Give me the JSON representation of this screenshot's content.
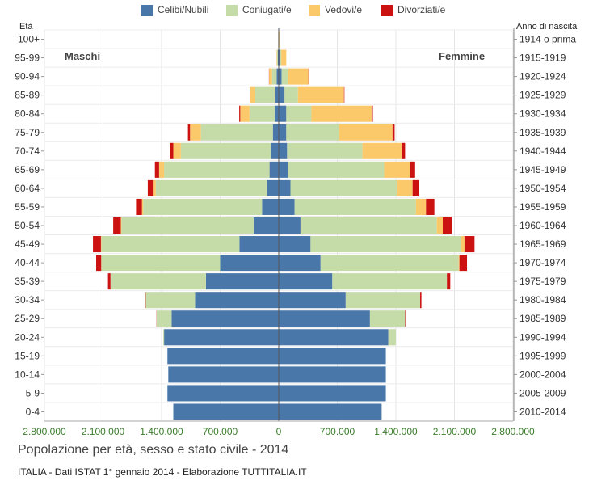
{
  "legend": [
    {
      "label": "Celibi/Nubili",
      "color": "#4a77aa"
    },
    {
      "label": "Coniugati/e",
      "color": "#c5dba8"
    },
    {
      "label": "Vedovi/e",
      "color": "#fbc86a"
    },
    {
      "label": "Divorziati/e",
      "color": "#cc1111"
    }
  ],
  "header": {
    "left": "Età",
    "right": "Anno di nascita"
  },
  "sides": {
    "left": "Maschi",
    "right": "Femmine"
  },
  "caption": {
    "title": "Popolazione per età, sesso e stato civile - 2014",
    "source": "ITALIA - Dati ISTAT 1° gennaio 2014 - Elaborazione TUTTITALIA.IT"
  },
  "chart_data": {
    "type": "bar",
    "orientation": "horizontal population pyramid (stacked)",
    "title": "Popolazione per età, sesso e stato civile - 2014",
    "categories": [
      "100+",
      "95-99",
      "90-94",
      "85-89",
      "80-84",
      "75-79",
      "70-74",
      "65-69",
      "60-64",
      "55-59",
      "50-54",
      "45-49",
      "40-44",
      "35-39",
      "30-34",
      "25-29",
      "20-24",
      "15-19",
      "10-14",
      "5-9",
      "0-4"
    ],
    "birth_years": [
      "1914 o prima",
      "1915-1919",
      "1920-1924",
      "1925-1929",
      "1930-1934",
      "1935-1939",
      "1940-1944",
      "1945-1949",
      "1950-1954",
      "1955-1959",
      "1960-1964",
      "1965-1969",
      "1970-1974",
      "1975-1979",
      "1980-1984",
      "1985-1989",
      "1990-1994",
      "1995-1999",
      "2000-2004",
      "2005-2009",
      "2010-2014"
    ],
    "x_ticks": [
      "2.800.000",
      "2.100.000",
      "1.400.000",
      "700.000",
      "0",
      "700.000",
      "1.400.000",
      "2.100.000",
      "2.800.000"
    ],
    "xlim": [
      -2800000,
      2800000
    ],
    "grid": true,
    "legend_position": "top",
    "male": {
      "Celibi/Nubili": [
        5000,
        10000,
        25000,
        40000,
        50000,
        70000,
        90000,
        110000,
        140000,
        200000,
        300000,
        470000,
        700000,
        870000,
        1000000,
        1280000,
        1370000,
        1330000,
        1320000,
        1330000,
        1260000
      ],
      "Coniugati/e": [
        1000,
        12000,
        55000,
        240000,
        300000,
        860000,
        1080000,
        1260000,
        1330000,
        1420000,
        1580000,
        1650000,
        1420000,
        1140000,
        590000,
        180000,
        10000,
        0,
        0,
        0,
        0
      ],
      "Vedovi/e": [
        1000,
        5000,
        35000,
        60000,
        110000,
        130000,
        90000,
        60000,
        35000,
        15000,
        8000,
        5000,
        2000,
        1000,
        0,
        0,
        0,
        0,
        0,
        0,
        0
      ],
      "Divorziati/e": [
        0,
        0,
        2000,
        5000,
        12000,
        25000,
        40000,
        50000,
        60000,
        70000,
        90000,
        95000,
        60000,
        30000,
        8000,
        2000,
        0,
        0,
        0,
        0,
        0
      ]
    },
    "female": {
      "Celibi/Nubili": [
        5000,
        15000,
        35000,
        70000,
        90000,
        90000,
        100000,
        110000,
        140000,
        190000,
        260000,
        380000,
        500000,
        640000,
        800000,
        1090000,
        1310000,
        1280000,
        1280000,
        1280000,
        1230000
      ],
      "Coniugati/e": [
        1000,
        15000,
        80000,
        160000,
        300000,
        630000,
        900000,
        1150000,
        1270000,
        1450000,
        1630000,
        1800000,
        1650000,
        1370000,
        890000,
        420000,
        90000,
        0,
        0,
        0,
        0
      ],
      "Vedovi/e": [
        10000,
        60000,
        240000,
        550000,
        720000,
        640000,
        470000,
        310000,
        190000,
        120000,
        70000,
        40000,
        10000,
        0,
        0,
        0,
        0,
        0,
        0,
        0,
        0
      ],
      "Divorziati/e": [
        0,
        0,
        2000,
        5000,
        15000,
        25000,
        40000,
        60000,
        80000,
        100000,
        110000,
        120000,
        90000,
        40000,
        15000,
        5000,
        0,
        0,
        0,
        0,
        0
      ]
    }
  }
}
